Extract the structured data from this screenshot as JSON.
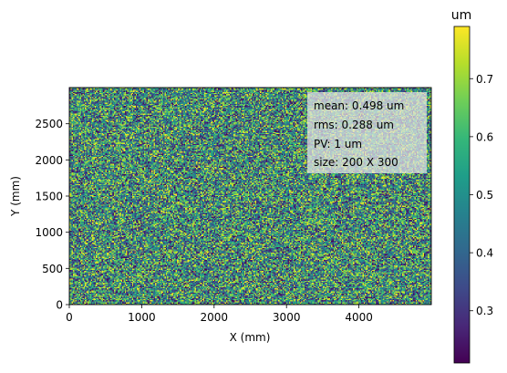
{
  "chart_data": [
    {
      "type": "heatmap",
      "xlabel": "X (mm)",
      "ylabel": "Y (mm)",
      "xlim": [
        0,
        5000
      ],
      "ylim": [
        0,
        3000
      ],
      "xticks": [
        0,
        1000,
        2000,
        3000,
        4000
      ],
      "yticks": [
        0,
        500,
        1000,
        1500,
        2000,
        2500
      ],
      "grid_shape": [
        300,
        200
      ],
      "value_distribution": "uniform random",
      "value_range": [
        0.21,
        0.79
      ],
      "colormap": "viridis",
      "annotation": {
        "lines": [
          "mean: 0.498 um",
          "rms: 0.288 um",
          "PV: 1 um",
          "size: 200 X 300"
        ],
        "box_color": "#e6e6e6",
        "placement": "upper-right"
      },
      "colorbar": {
        "title": "um",
        "range": [
          0.21,
          0.79
        ],
        "ticks": [
          0.3,
          0.4,
          0.5,
          0.6,
          0.7
        ]
      },
      "colors": {
        "viridis": [
          "#440154",
          "#482878",
          "#3e4a89",
          "#31688e",
          "#26828e",
          "#1f9e89",
          "#35b779",
          "#6ece58",
          "#b5de2b",
          "#fde725"
        ]
      }
    }
  ]
}
